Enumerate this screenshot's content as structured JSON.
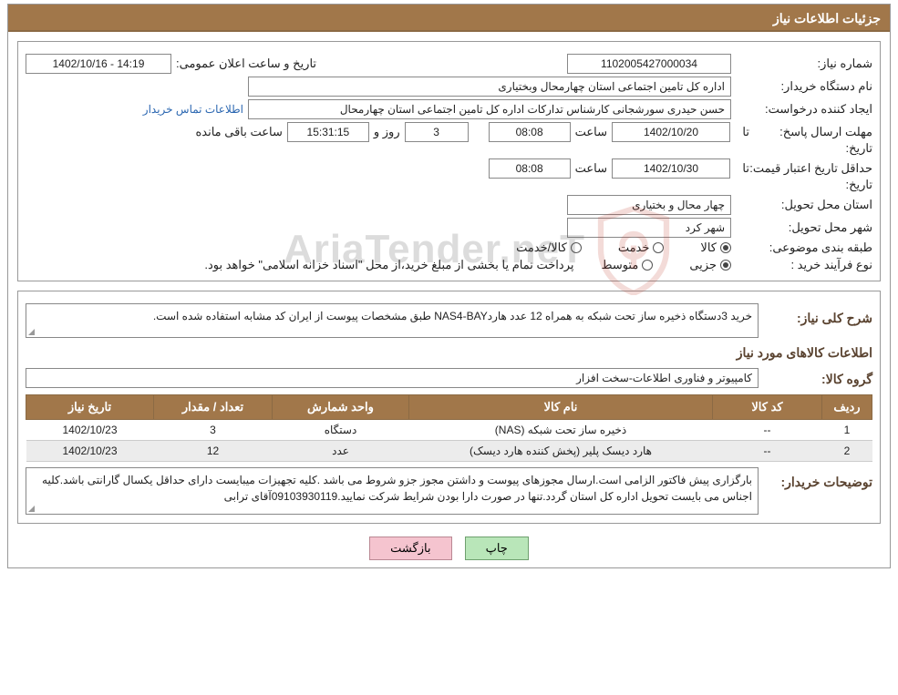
{
  "header": {
    "title": "جزئیات اطلاعات نیاز"
  },
  "info": {
    "need_number_label": "شماره نیاز:",
    "need_number": "1102005427000034",
    "announce_label": "تاریخ و ساعت اعلان عمومی:",
    "announce_value": "1402/10/16 - 14:19",
    "buyer_org_label": "نام دستگاه خریدار:",
    "buyer_org": "اداره کل تامین اجتماعی استان چهارمحال وبختیاری",
    "requester_label": "ایجاد کننده درخواست:",
    "requester": "حسن حیدری سورشجانی کارشناس تدارکات اداره کل تامین اجتماعی استان چهارمحال",
    "contact_link": "اطلاعات تماس خریدار",
    "reply_deadline_label": "مهلت ارسال پاسخ:",
    "until": "تا",
    "date_label": "تاریخ:",
    "reply_date": "1402/10/20",
    "time_label": "ساعت",
    "reply_time": "08:08",
    "days": "3",
    "days_suffix": "روز و",
    "countdown": "15:31:15",
    "remain_suffix": "ساعت باقی مانده",
    "price_validity_label": "حداقل تاریخ اعتبار قیمت:",
    "price_validity_date": "1402/10/30",
    "price_validity_time": "08:08",
    "delivery_province_label": "استان محل تحویل:",
    "delivery_province": "چهار محال و بختیاری",
    "delivery_city_label": "شهر محل تحویل:",
    "delivery_city": "شهر کرد",
    "classify_label": "طبقه بندی موضوعی:",
    "radio_goods": "کالا",
    "radio_service": "خدمت",
    "radio_goods_service": "کالا/خدمت",
    "purchase_type_label": "نوع فرآیند خرید :",
    "radio_small": "جزیی",
    "radio_medium": "متوسط",
    "payment_note": "پرداخت تمام یا بخشی از مبلغ خرید،از محل \"اسناد خزانه اسلامی\" خواهد بود."
  },
  "need": {
    "desc_label": "شرح کلی نیاز:",
    "desc_text": "خرید 3دستگاه ذخیره ساز تحت شبکه به همراه 12 عدد هاردNAS4-BAY طبق مشخصات پیوست از ایران کد مشابه استفاده شده است.",
    "items_title": "اطلاعات کالاهای مورد نیاز",
    "group_label": "گروه کالا:",
    "group_value": "کامپیوتر و فناوری اطلاعات-سخت افزار"
  },
  "table": {
    "headers": [
      "ردیف",
      "کد کالا",
      "نام کالا",
      "واحد شمارش",
      "تعداد / مقدار",
      "تاریخ نیاز"
    ],
    "widths": [
      "55px",
      "120px",
      "auto",
      "150px",
      "130px",
      "140px"
    ],
    "rows": [
      [
        "1",
        "--",
        "ذخیره ساز تحت شبکه (NAS)",
        "دستگاه",
        "3",
        "1402/10/23"
      ],
      [
        "2",
        "--",
        "هارد دیسک پلیر (پخش کننده هارد دیسک)",
        "عدد",
        "12",
        "1402/10/23"
      ]
    ]
  },
  "buyer_notes": {
    "label": "توضیحات خریدار:",
    "text": "بارگزاری پیش فاکتور الزامی است.ارسال مجوزهای پیوست و داشتن مجوز جزو شروط می باشد .کلیه تجهیزات میبایست دارای حداقل یکسال گارانتی باشد.کلیه اجناس می بایست تحویل اداره کل استان گردد.تنها در صورت دارا بودن شرایط شرکت نمایید.09103930119آقای ترابی"
  },
  "buttons": {
    "print": "چاپ",
    "back": "بازگشت"
  },
  "watermark": {
    "text": "AriaTender.neT"
  }
}
